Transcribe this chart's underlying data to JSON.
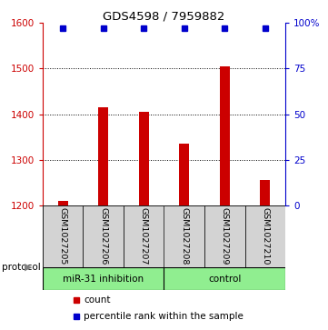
{
  "title": "GDS4598 / 7959882",
  "samples": [
    "GSM1027205",
    "GSM1027206",
    "GSM1027207",
    "GSM1027208",
    "GSM1027209",
    "GSM1027210"
  ],
  "counts": [
    1210,
    1415,
    1405,
    1335,
    1505,
    1255
  ],
  "percentiles": [
    97,
    97,
    97,
    97,
    97,
    97
  ],
  "bar_color": "#CC0000",
  "percentile_color": "#0000CC",
  "bar_bottom": 1200,
  "ylim_left": [
    1200,
    1600
  ],
  "ylim_right": [
    0,
    100
  ],
  "yticks_left": [
    1200,
    1300,
    1400,
    1500,
    1600
  ],
  "yticks_right": [
    0,
    25,
    50,
    75,
    100
  ],
  "grid_values": [
    1300,
    1400,
    1500
  ],
  "bg_color": "#FFFFFF",
  "sample_bg": "#D3D3D3",
  "protocol_green": "#90EE90",
  "mir_label": "miR-31 inhibition",
  "ctrl_label": "control",
  "mir_count": 3,
  "ctrl_count": 3,
  "legend_count_color": "#CC0000",
  "legend_pct_color": "#0000CC",
  "legend_count_text": "count",
  "legend_pct_text": "percentile rank within the sample",
  "protocol_text": "protocol",
  "bar_width": 0.25
}
